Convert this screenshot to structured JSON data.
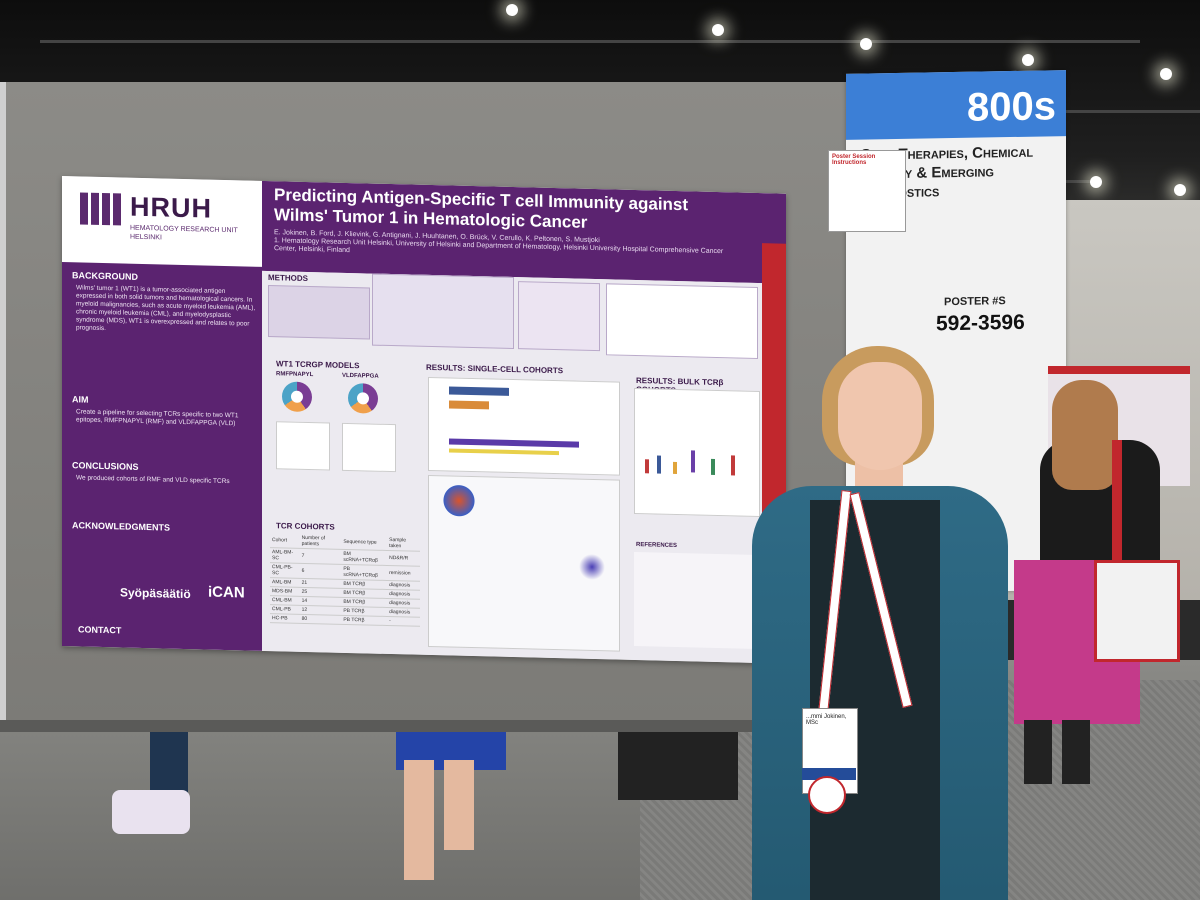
{
  "poster": {
    "logo_title": "HRUH",
    "logo_subtitle": "HEMATOLOGY RESEARCH UNIT HELSINKI",
    "title": "Predicting Antigen-Specific T cell Immunity against Wilms' Tumor 1 in Hematologic Cancer",
    "authors": "E. Jokinen, B. Ford, J. Klievink, G. Antignani, J. Huuhtanen, O. Brück, V. Cerullo, K. Peltonen, S. Mustjoki",
    "affiliation": "1. Hematology Research Unit Helsinki, University of Helsinki and Department of Hematology, Helsinki University Hospital Comprehensive Cancer Center, Helsinki, Finland",
    "sections": {
      "background": "BACKGROUND",
      "background_text": "Wilms' tumor 1 (WT1) is a tumor-associated antigen expressed in both solid tumors and hematological cancers. In myeloid malignancies, such as acute myeloid leukemia (AML), chronic myeloid leukemia (CML), and myelodysplastic syndrome (MDS), WT1 is overexpressed and relates to poor prognosis.",
      "aim": "AIM",
      "aim_text": "Create a pipeline for selecting TCRs specific to two WT1 epitopes, RMFPNAPYL (RMF) and VLDFAPPGA (VLD)",
      "conclusions": "CONCLUSIONS",
      "conclusions_text": "We produced cohorts of RMF and VLD specific TCRs",
      "acknowledgments": "ACKNOWLEDGMENTS",
      "contact": "CONTACT",
      "methods": "METHODS",
      "models": "WT1 TCRGP MODELS",
      "model_a": "RMFPNAPYL",
      "model_b": "VLDFAPPGA",
      "single_cell": "RESULTS: SINGLE-CELL COHORTS",
      "bulk": "RESULTS: BULK TCRβ COHORTS",
      "tcr_cohorts": "TCR COHORTS",
      "references": "REFERENCES"
    },
    "cohort_table": {
      "headers": [
        "Cohort",
        "Number of patients",
        "Sequence type",
        "Sample taken"
      ],
      "rows": [
        [
          "AML-BM-SC",
          "7",
          "BM scRNA+TCRαβ",
          "ND&R/R"
        ],
        [
          "CML-PB-SC",
          "6",
          "PB scRNA+TCRαβ",
          "remission"
        ],
        [
          "AML-BM",
          "21",
          "BM TCRβ",
          "diagnosis"
        ],
        [
          "MDS-BM",
          "25",
          "BM TCRβ",
          "diagnosis"
        ],
        [
          "CML-BM",
          "14",
          "BM TCRβ",
          "diagnosis"
        ],
        [
          "CML-PB",
          "12",
          "PB TCRβ",
          "diagnosis"
        ],
        [
          "HC-PB",
          "80",
          "PB TCRβ",
          "-"
        ]
      ]
    },
    "footer_logos": [
      "Syöpäsäätiö",
      "iCAN"
    ]
  },
  "sign": {
    "number": "800s",
    "category": "Gene Therapies, Chemical ...ology & Emerging Diagnostics",
    "poster_label": "POSTER #S",
    "range": "592-3596"
  },
  "card": {
    "title": "Poster Session Instructions"
  },
  "badge": {
    "name": "...mmi Jokinen, MSc"
  }
}
